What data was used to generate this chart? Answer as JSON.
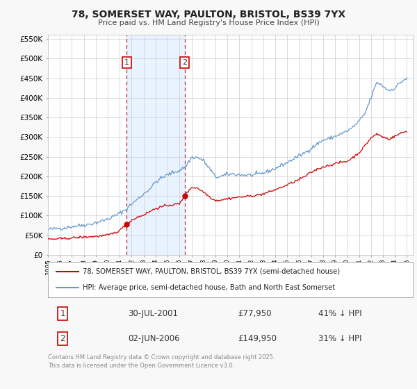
{
  "title": "78, SOMERSET WAY, PAULTON, BRISTOL, BS39 7YX",
  "subtitle": "Price paid vs. HM Land Registry's House Price Index (HPI)",
  "background_color": "#f8f8f8",
  "plot_bg_color": "#ffffff",
  "red_color": "#cc0000",
  "blue_color": "#6699cc",
  "shade_color": "#ddeeff",
  "transaction1": {
    "label": "1",
    "date_str": "30-JUL-2001",
    "year": 2001.58,
    "price": 77950,
    "pct": "41% ↓ HPI"
  },
  "transaction2": {
    "label": "2",
    "date_str": "02-JUN-2006",
    "year": 2006.42,
    "price": 149950,
    "pct": "31% ↓ HPI"
  },
  "legend_line1": "78, SOMERSET WAY, PAULTON, BRISTOL, BS39 7YX (semi-detached house)",
  "legend_line2": "HPI: Average price, semi-detached house, Bath and North East Somerset",
  "footnote": "Contains HM Land Registry data © Crown copyright and database right 2025.\nThis data is licensed under the Open Government Licence v3.0.",
  "ylim": [
    0,
    560000
  ],
  "yticks": [
    0,
    50000,
    100000,
    150000,
    200000,
    250000,
    300000,
    350000,
    400000,
    450000,
    500000,
    550000
  ],
  "xlim_start": 1995,
  "xlim_end": 2025.5,
  "hpi_keypoints": [
    [
      1995.0,
      65000
    ],
    [
      1995.5,
      66000
    ],
    [
      1996.0,
      68000
    ],
    [
      1996.5,
      69000
    ],
    [
      1997.0,
      72000
    ],
    [
      1997.5,
      74000
    ],
    [
      1998.0,
      76000
    ],
    [
      1998.5,
      78000
    ],
    [
      1999.0,
      82000
    ],
    [
      1999.5,
      86000
    ],
    [
      2000.0,
      91000
    ],
    [
      2000.5,
      98000
    ],
    [
      2001.0,
      106000
    ],
    [
      2001.5,
      115000
    ],
    [
      2002.0,
      130000
    ],
    [
      2002.5,
      142000
    ],
    [
      2003.0,
      155000
    ],
    [
      2003.5,
      168000
    ],
    [
      2004.0,
      185000
    ],
    [
      2004.5,
      196000
    ],
    [
      2005.0,
      204000
    ],
    [
      2005.5,
      210000
    ],
    [
      2006.0,
      215000
    ],
    [
      2006.5,
      225000
    ],
    [
      2007.0,
      248000
    ],
    [
      2007.5,
      248000
    ],
    [
      2008.0,
      240000
    ],
    [
      2008.5,
      220000
    ],
    [
      2009.0,
      198000
    ],
    [
      2009.5,
      200000
    ],
    [
      2010.0,
      205000
    ],
    [
      2010.5,
      206000
    ],
    [
      2011.0,
      204000
    ],
    [
      2011.5,
      203000
    ],
    [
      2012.0,
      203000
    ],
    [
      2012.5,
      205000
    ],
    [
      2013.0,
      208000
    ],
    [
      2013.5,
      214000
    ],
    [
      2014.0,
      220000
    ],
    [
      2014.5,
      228000
    ],
    [
      2015.0,
      235000
    ],
    [
      2015.5,
      244000
    ],
    [
      2016.0,
      252000
    ],
    [
      2016.5,
      260000
    ],
    [
      2017.0,
      272000
    ],
    [
      2017.5,
      282000
    ],
    [
      2018.0,
      292000
    ],
    [
      2018.5,
      296000
    ],
    [
      2019.0,
      302000
    ],
    [
      2019.5,
      308000
    ],
    [
      2020.0,
      315000
    ],
    [
      2020.5,
      325000
    ],
    [
      2021.0,
      340000
    ],
    [
      2021.5,
      360000
    ],
    [
      2022.0,
      400000
    ],
    [
      2022.5,
      440000
    ],
    [
      2023.0,
      430000
    ],
    [
      2023.5,
      418000
    ],
    [
      2024.0,
      425000
    ],
    [
      2024.5,
      440000
    ],
    [
      2025.0,
      450000
    ]
  ],
  "red_keypoints": [
    [
      1995.0,
      40000
    ],
    [
      1995.5,
      40000
    ],
    [
      1996.0,
      41000
    ],
    [
      1996.5,
      41500
    ],
    [
      1997.0,
      43000
    ],
    [
      1997.5,
      44000
    ],
    [
      1998.0,
      45000
    ],
    [
      1998.5,
      46000
    ],
    [
      1999.0,
      47000
    ],
    [
      1999.5,
      48000
    ],
    [
      2000.0,
      50000
    ],
    [
      2000.5,
      55000
    ],
    [
      2001.0,
      62000
    ],
    [
      2001.58,
      77950
    ],
    [
      2002.0,
      88000
    ],
    [
      2002.5,
      96000
    ],
    [
      2003.0,
      102000
    ],
    [
      2003.5,
      110000
    ],
    [
      2004.0,
      118000
    ],
    [
      2004.5,
      122000
    ],
    [
      2005.0,
      126000
    ],
    [
      2005.5,
      128000
    ],
    [
      2006.0,
      130000
    ],
    [
      2006.42,
      149950
    ],
    [
      2007.0,
      172000
    ],
    [
      2007.5,
      170000
    ],
    [
      2008.0,
      160000
    ],
    [
      2008.5,
      148000
    ],
    [
      2009.0,
      138000
    ],
    [
      2009.5,
      140000
    ],
    [
      2010.0,
      143000
    ],
    [
      2010.5,
      145000
    ],
    [
      2011.0,
      147000
    ],
    [
      2011.5,
      148000
    ],
    [
      2012.0,
      150000
    ],
    [
      2012.5,
      152000
    ],
    [
      2013.0,
      155000
    ],
    [
      2013.5,
      160000
    ],
    [
      2014.0,
      166000
    ],
    [
      2014.5,
      172000
    ],
    [
      2015.0,
      178000
    ],
    [
      2015.5,
      185000
    ],
    [
      2016.0,
      192000
    ],
    [
      2016.5,
      200000
    ],
    [
      2017.0,
      210000
    ],
    [
      2017.5,
      218000
    ],
    [
      2018.0,
      224000
    ],
    [
      2018.5,
      228000
    ],
    [
      2019.0,
      232000
    ],
    [
      2019.5,
      236000
    ],
    [
      2020.0,
      238000
    ],
    [
      2020.5,
      248000
    ],
    [
      2021.0,
      260000
    ],
    [
      2021.5,
      278000
    ],
    [
      2022.0,
      298000
    ],
    [
      2022.5,
      308000
    ],
    [
      2023.0,
      300000
    ],
    [
      2023.5,
      295000
    ],
    [
      2024.0,
      302000
    ],
    [
      2024.5,
      310000
    ],
    [
      2025.0,
      315000
    ]
  ]
}
